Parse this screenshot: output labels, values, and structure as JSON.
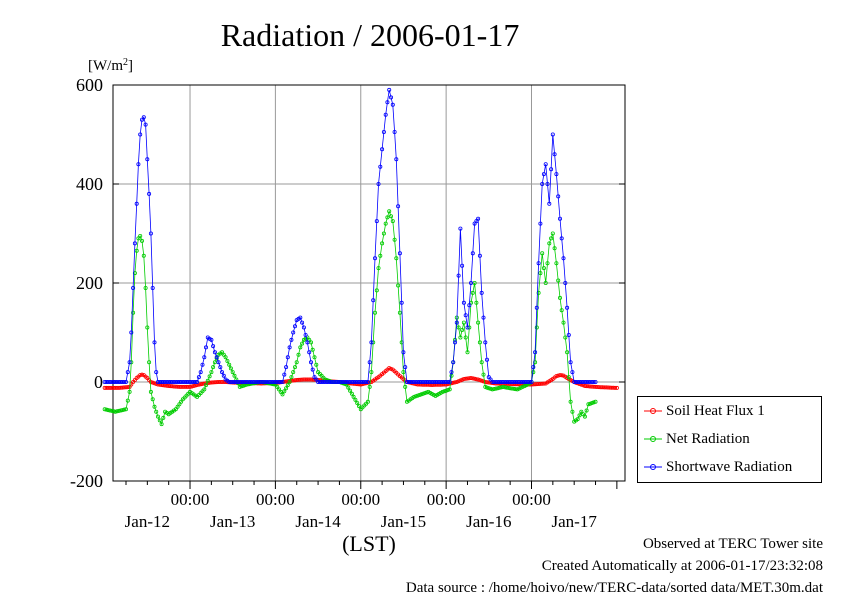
{
  "chart_data": {
    "type": "line",
    "title": "Radiation / 2006-01-17",
    "ylabel": "[W/m²]",
    "xlabel": "(LST)",
    "ylim": [
      -200,
      600
    ],
    "yticks": [
      -200,
      0,
      200,
      400,
      600
    ],
    "grid": true,
    "legend_position": "right",
    "x_day_start": "Jan-12",
    "x_day_end": "Jan-17",
    "xtick_labels": [
      "00:00",
      "00:00",
      "00:00",
      "00:00",
      "00:00"
    ],
    "day_labels": [
      "Jan-12",
      "Jan-13",
      "Jan-14",
      "Jan-15",
      "Jan-16",
      "Jan-17"
    ],
    "series": [
      {
        "name": "Soil Heat Flux 1",
        "color": "#ff0000",
        "points": [
          [
            0,
            -12
          ],
          [
            4,
            -12
          ],
          [
            7,
            -10
          ],
          [
            8,
            0
          ],
          [
            9,
            8
          ],
          [
            10,
            14
          ],
          [
            10.5,
            15
          ],
          [
            11,
            14
          ],
          [
            12,
            8
          ],
          [
            13,
            0
          ],
          [
            15,
            -5
          ],
          [
            18,
            -8
          ],
          [
            21,
            -10
          ],
          [
            24,
            -10
          ],
          [
            26,
            -6
          ],
          [
            28,
            -3
          ],
          [
            30,
            -1
          ],
          [
            32,
            0
          ],
          [
            34,
            0
          ],
          [
            36,
            -1
          ],
          [
            40,
            -2
          ],
          [
            44,
            -3
          ],
          [
            48,
            -2
          ],
          [
            50,
            0
          ],
          [
            52,
            2
          ],
          [
            54,
            4
          ],
          [
            56,
            5
          ],
          [
            58,
            5
          ],
          [
            60,
            4
          ],
          [
            62,
            3
          ],
          [
            64,
            1
          ],
          [
            66,
            0
          ],
          [
            68,
            -2
          ],
          [
            72,
            -5
          ],
          [
            75,
            0
          ],
          [
            77,
            10
          ],
          [
            79,
            22
          ],
          [
            80,
            28
          ],
          [
            81,
            25
          ],
          [
            83,
            12
          ],
          [
            85,
            0
          ],
          [
            88,
            -5
          ],
          [
            92,
            -6
          ],
          [
            96,
            -5
          ],
          [
            99,
            0
          ],
          [
            101,
            6
          ],
          [
            103,
            8
          ],
          [
            105,
            5
          ],
          [
            107,
            0
          ],
          [
            110,
            -3
          ],
          [
            114,
            -4
          ],
          [
            118,
            -5
          ],
          [
            120,
            -5
          ],
          [
            124,
            -3
          ],
          [
            126,
            6
          ],
          [
            127,
            12
          ],
          [
            128,
            14
          ],
          [
            129,
            13
          ],
          [
            130,
            8
          ],
          [
            132,
            0
          ],
          [
            135,
            -8
          ],
          [
            138,
            -10
          ],
          [
            144,
            -12
          ]
        ]
      },
      {
        "name": "Net Radiation",
        "color": "#00cc00",
        "points": [
          [
            0,
            -55
          ],
          [
            3,
            -60
          ],
          [
            6,
            -55
          ],
          [
            7,
            -20
          ],
          [
            7.5,
            40
          ],
          [
            8,
            140
          ],
          [
            8.5,
            220
          ],
          [
            9,
            265
          ],
          [
            9.5,
            290
          ],
          [
            10,
            295
          ],
          [
            10.5,
            285
          ],
          [
            11,
            255
          ],
          [
            11.5,
            190
          ],
          [
            12,
            110
          ],
          [
            12.5,
            40
          ],
          [
            13,
            -20
          ],
          [
            14,
            -50
          ],
          [
            15,
            -70
          ],
          [
            16,
            -85
          ],
          [
            17,
            -60
          ],
          [
            18,
            -65
          ],
          [
            20,
            -55
          ],
          [
            22,
            -35
          ],
          [
            24,
            -20
          ],
          [
            26,
            -30
          ],
          [
            28,
            -15
          ],
          [
            30,
            20
          ],
          [
            31,
            40
          ],
          [
            32,
            55
          ],
          [
            33,
            60
          ],
          [
            34,
            50
          ],
          [
            35,
            35
          ],
          [
            36,
            20
          ],
          [
            37,
            5
          ],
          [
            38,
            -10
          ],
          [
            40,
            -5
          ],
          [
            44,
            0
          ],
          [
            48,
            -5
          ],
          [
            50,
            -25
          ],
          [
            52,
            0
          ],
          [
            54,
            40
          ],
          [
            55,
            70
          ],
          [
            56,
            85
          ],
          [
            57,
            90
          ],
          [
            58,
            80
          ],
          [
            59,
            50
          ],
          [
            60,
            20
          ],
          [
            62,
            5
          ],
          [
            64,
            0
          ],
          [
            66,
            0
          ],
          [
            68,
            -5
          ],
          [
            70,
            -30
          ],
          [
            72,
            -55
          ],
          [
            74,
            -40
          ],
          [
            75,
            20
          ],
          [
            76,
            140
          ],
          [
            77,
            230
          ],
          [
            78,
            280
          ],
          [
            79,
            320
          ],
          [
            80,
            345
          ],
          [
            81,
            325
          ],
          [
            82,
            250
          ],
          [
            83,
            140
          ],
          [
            84,
            20
          ],
          [
            85,
            -40
          ],
          [
            87,
            -30
          ],
          [
            89,
            -25
          ],
          [
            91,
            -20
          ],
          [
            93,
            -28
          ],
          [
            95,
            -20
          ],
          [
            97,
            -15
          ],
          [
            98,
            40
          ],
          [
            99,
            130
          ],
          [
            100,
            90
          ],
          [
            101,
            120
          ],
          [
            102,
            60
          ],
          [
            103,
            160
          ],
          [
            104,
            200
          ],
          [
            105,
            120
          ],
          [
            106,
            40
          ],
          [
            107,
            -10
          ],
          [
            109,
            -15
          ],
          [
            112,
            -10
          ],
          [
            116,
            -15
          ],
          [
            119,
            -5
          ],
          [
            120,
            0
          ],
          [
            121,
            40
          ],
          [
            122,
            180
          ],
          [
            123,
            260
          ],
          [
            124,
            200
          ],
          [
            125,
            280
          ],
          [
            126,
            300
          ],
          [
            127,
            240
          ],
          [
            128,
            170
          ],
          [
            129,
            120
          ],
          [
            130,
            60
          ],
          [
            131,
            -40
          ],
          [
            132,
            -80
          ],
          [
            133,
            -75
          ],
          [
            134,
            -60
          ],
          [
            135,
            -70
          ],
          [
            136,
            -45
          ],
          [
            138,
            -40
          ]
        ]
      },
      {
        "name": "Shortwave Radiation",
        "color": "#0000ff",
        "points": [
          [
            0,
            0
          ],
          [
            6,
            0
          ],
          [
            7,
            40
          ],
          [
            7.5,
            100
          ],
          [
            8,
            190
          ],
          [
            8.5,
            280
          ],
          [
            9,
            360
          ],
          [
            9.5,
            440
          ],
          [
            10,
            500
          ],
          [
            10.5,
            530
          ],
          [
            11,
            535
          ],
          [
            11.5,
            520
          ],
          [
            12,
            450
          ],
          [
            12.5,
            380
          ],
          [
            13,
            300
          ],
          [
            13.5,
            190
          ],
          [
            14,
            80
          ],
          [
            14.5,
            20
          ],
          [
            15,
            0
          ],
          [
            26,
            0
          ],
          [
            27,
            20
          ],
          [
            28,
            50
          ],
          [
            29,
            90
          ],
          [
            30,
            85
          ],
          [
            31,
            60
          ],
          [
            32,
            40
          ],
          [
            33,
            20
          ],
          [
            34,
            5
          ],
          [
            35,
            0
          ],
          [
            50,
            0
          ],
          [
            51,
            30
          ],
          [
            52,
            70
          ],
          [
            53,
            100
          ],
          [
            54,
            125
          ],
          [
            55,
            130
          ],
          [
            56,
            110
          ],
          [
            57,
            80
          ],
          [
            58,
            40
          ],
          [
            59,
            10
          ],
          [
            60,
            0
          ],
          [
            74,
            0
          ],
          [
            75,
            80
          ],
          [
            76,
            250
          ],
          [
            77,
            400
          ],
          [
            78,
            470
          ],
          [
            79,
            540
          ],
          [
            80,
            590
          ],
          [
            81,
            560
          ],
          [
            82,
            450
          ],
          [
            83,
            260
          ],
          [
            84,
            60
          ],
          [
            85,
            0
          ],
          [
            97,
            0
          ],
          [
            98,
            40
          ],
          [
            99,
            120
          ],
          [
            100,
            310
          ],
          [
            101,
            160
          ],
          [
            102,
            110
          ],
          [
            103,
            200
          ],
          [
            104,
            320
          ],
          [
            105,
            330
          ],
          [
            106,
            180
          ],
          [
            107,
            80
          ],
          [
            108,
            10
          ],
          [
            109,
            0
          ],
          [
            120,
            0
          ],
          [
            121,
            60
          ],
          [
            122,
            240
          ],
          [
            123,
            400
          ],
          [
            124,
            440
          ],
          [
            125,
            360
          ],
          [
            126,
            500
          ],
          [
            127,
            420
          ],
          [
            128,
            330
          ],
          [
            129,
            250
          ],
          [
            130,
            150
          ],
          [
            131,
            40
          ],
          [
            132,
            0
          ],
          [
            138,
            0
          ]
        ]
      }
    ]
  },
  "legend": [
    {
      "label": "Soil Heat Flux 1",
      "color": "#ff0000"
    },
    {
      "label": "Net Radiation",
      "color": "#00cc00"
    },
    {
      "label": "Shortwave Radiation",
      "color": "#0000ff"
    }
  ],
  "footer": {
    "line1": "Observed at TERC Tower site",
    "line2": "Created Automatically at 2006-01-17/23:32:08",
    "line3": "Data source : /home/hoivo/new/TERC-data/sorted  data/MET.30m.dat"
  }
}
